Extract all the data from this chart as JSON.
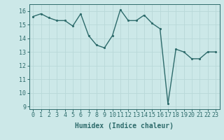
{
  "x": [
    0,
    1,
    2,
    3,
    4,
    5,
    6,
    7,
    8,
    9,
    10,
    11,
    12,
    13,
    14,
    15,
    16,
    17,
    18,
    19,
    20,
    21,
    22,
    23
  ],
  "y": [
    15.6,
    15.8,
    15.5,
    15.3,
    15.3,
    14.9,
    15.8,
    14.2,
    13.5,
    13.3,
    14.2,
    16.1,
    15.3,
    15.3,
    15.7,
    15.1,
    14.7,
    9.2,
    13.2,
    13.0,
    12.5,
    12.5,
    13.0,
    13.0
  ],
  "line_color": "#2d6b6b",
  "marker_color": "#2d6b6b",
  "bg_color": "#cce8e8",
  "grid_color": "#b8d8d8",
  "xlabel": "Humidex (Indice chaleur)",
  "xlabel_fontsize": 7,
  "ylabel_ticks": [
    9,
    10,
    11,
    12,
    13,
    14,
    15,
    16
  ],
  "xlim": [
    -0.5,
    23.5
  ],
  "ylim": [
    8.8,
    16.5
  ],
  "tick_fontsize": 6,
  "marker_size": 2.5,
  "line_width": 1.0
}
